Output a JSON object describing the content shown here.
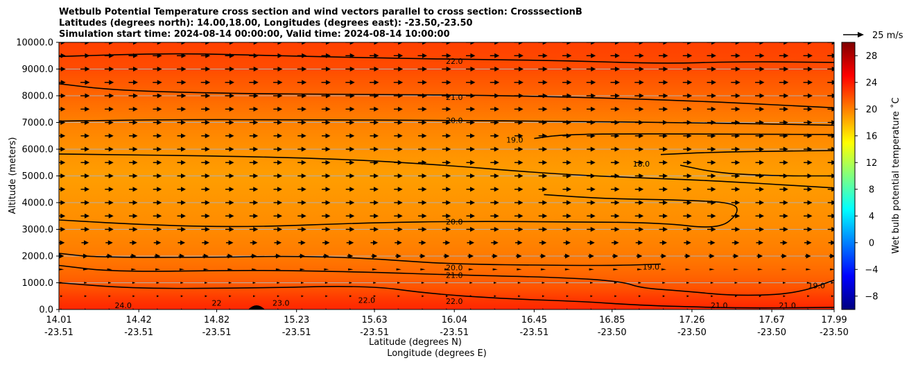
{
  "chart_data": {
    "type": "heatmap",
    "subtype": "contour-fill cross section with quiver vectors",
    "title_lines": [
      "Wetbulb Potential Temperature cross section and wind vectors parallel to cross section: CrosssectionB",
      "Latitudes (degrees north): 14.00,18.00, Longitudes (degrees east): -23.50,-23.50",
      "Simulation start time: 2024-08-14 00:00:00, Valid time: 2024-08-14 10:00:00"
    ],
    "xlabel_lat": "Latitude (degrees N)",
    "xlabel_lon": "Longitude (degrees E)",
    "ylabel": "Altitude (meters)",
    "x_ticks": [
      {
        "lat": "14.01",
        "lon": "-23.51"
      },
      {
        "lat": "14.42",
        "lon": "-23.51"
      },
      {
        "lat": "14.82",
        "lon": "-23.51"
      },
      {
        "lat": "15.23",
        "lon": "-23.51"
      },
      {
        "lat": "15.63",
        "lon": "-23.51"
      },
      {
        "lat": "16.04",
        "lon": "-23.51"
      },
      {
        "lat": "16.45",
        "lon": "-23.51"
      },
      {
        "lat": "16.85",
        "lon": "-23.50"
      },
      {
        "lat": "17.26",
        "lon": "-23.50"
      },
      {
        "lat": "17.67",
        "lon": "-23.50"
      },
      {
        "lat": "17.99",
        "lon": "-23.50"
      }
    ],
    "xlim": [
      14.01,
      17.99
    ],
    "y_ticks": [
      "0.0",
      "1000.0",
      "2000.0",
      "3000.0",
      "4000.0",
      "5000.0",
      "6000.0",
      "7000.0",
      "8000.0",
      "9000.0",
      "10000.0"
    ],
    "y_tick_values": [
      0,
      1000,
      2000,
      3000,
      4000,
      5000,
      6000,
      7000,
      8000,
      9000,
      10000
    ],
    "ylim": [
      0,
      10000
    ],
    "grid": "horizontal",
    "colorbar": {
      "label": "Wet bulb potential temperature $^\\circ$C",
      "label_text": "Wet bulb potential temperature ˚C",
      "ticks": [
        "−8",
        "−4",
        "0",
        "4",
        "8",
        "12",
        "16",
        "20",
        "24",
        "28"
      ],
      "tick_values": [
        -8,
        -4,
        0,
        4,
        8,
        12,
        16,
        20,
        24,
        28
      ],
      "range": [
        -10,
        30
      ],
      "colormap": "jet"
    },
    "quiver_key": {
      "label": "25 m/s",
      "speed": 25
    },
    "field_profile": [
      {
        "alt": 0,
        "value": 23.5
      },
      {
        "alt": 300,
        "value": 23.0
      },
      {
        "alt": 800,
        "value": 21.8
      },
      {
        "alt": 1300,
        "value": 21.0
      },
      {
        "alt": 2000,
        "value": 20.2
      },
      {
        "alt": 3000,
        "value": 19.6
      },
      {
        "alt": 4000,
        "value": 19.2
      },
      {
        "alt": 5000,
        "value": 18.8
      },
      {
        "alt": 6000,
        "value": 19.3
      },
      {
        "alt": 7000,
        "value": 20.0
      },
      {
        "alt": 8000,
        "value": 21.0
      },
      {
        "alt": 9000,
        "value": 22.0
      },
      {
        "alt": 10000,
        "value": 22.5
      }
    ],
    "contours": [
      {
        "level": "22.0",
        "points": [
          [
            14.01,
            9470
          ],
          [
            14.6,
            9600
          ],
          [
            15.2,
            9480
          ],
          [
            15.8,
            9400
          ],
          [
            16.1,
            9360
          ],
          [
            16.6,
            9320
          ],
          [
            17.1,
            9200
          ],
          [
            17.5,
            9280
          ],
          [
            17.99,
            9250
          ]
        ]
      },
      {
        "level": "21.0",
        "points": [
          [
            14.01,
            8450
          ],
          [
            14.3,
            8200
          ],
          [
            14.9,
            8080
          ],
          [
            15.6,
            8050
          ],
          [
            16.2,
            8020
          ],
          [
            16.8,
            7920
          ],
          [
            17.3,
            7800
          ],
          [
            17.99,
            7550
          ]
        ]
      },
      {
        "level": "20.0",
        "points": [
          [
            14.01,
            7050
          ],
          [
            14.6,
            7110
          ],
          [
            15.3,
            7100
          ],
          [
            16.0,
            7080
          ],
          [
            16.6,
            7040
          ],
          [
            17.2,
            7000
          ],
          [
            17.99,
            6900
          ]
        ]
      },
      {
        "level": "19.0",
        "points": [
          [
            16.45,
            6400
          ],
          [
            16.6,
            6550
          ],
          [
            17.0,
            6580
          ],
          [
            17.5,
            6560
          ],
          [
            17.99,
            6550
          ]
        ]
      },
      {
        "level": "19.0",
        "points": [
          [
            14.01,
            5820
          ],
          [
            14.9,
            5740
          ],
          [
            15.5,
            5620
          ],
          [
            16.0,
            5400
          ],
          [
            16.5,
            5100
          ],
          [
            16.9,
            4950
          ],
          [
            17.3,
            4850
          ],
          [
            17.99,
            4550
          ]
        ]
      },
      {
        "level": "18.0",
        "points": [
          [
            17.1,
            5800
          ],
          [
            17.4,
            5900
          ],
          [
            17.99,
            5950
          ]
        ]
      },
      {
        "level": "18.0",
        "points": [
          [
            17.2,
            5400
          ],
          [
            17.4,
            5100
          ],
          [
            17.7,
            5000
          ],
          [
            17.99,
            5000
          ]
        ]
      },
      {
        "level": "20.0",
        "points": [
          [
            14.01,
            3350
          ],
          [
            14.5,
            3150
          ],
          [
            15.0,
            3080
          ],
          [
            15.6,
            3250
          ],
          [
            16.1,
            3300
          ],
          [
            16.6,
            3280
          ],
          [
            17.1,
            3250
          ],
          [
            17.4,
            3000
          ],
          [
            17.5,
            3600
          ],
          [
            17.48,
            4000
          ],
          [
            17.2,
            4100
          ],
          [
            16.8,
            4150
          ],
          [
            16.5,
            4300
          ]
        ]
      },
      {
        "level": "20.0",
        "points": [
          [
            14.01,
            2100
          ],
          [
            14.2,
            1950
          ],
          [
            14.8,
            1950
          ],
          [
            15.2,
            2000
          ],
          [
            15.6,
            1920
          ],
          [
            16.0,
            1700
          ],
          [
            16.6,
            1650
          ],
          [
            16.9,
            1650
          ],
          [
            17.1,
            1700
          ]
        ]
      },
      {
        "level": "21.0",
        "points": [
          [
            14.01,
            1650
          ],
          [
            14.3,
            1400
          ],
          [
            15.0,
            1480
          ],
          [
            15.6,
            1400
          ],
          [
            16.0,
            1300
          ],
          [
            16.6,
            1200
          ],
          [
            16.9,
            1050
          ],
          [
            17.0,
            800
          ],
          [
            17.2,
            700
          ],
          [
            17.5,
            500
          ],
          [
            17.8,
            600
          ],
          [
            17.99,
            1100
          ]
        ]
      },
      {
        "level": "22.0",
        "points": [
          [
            14.01,
            1000
          ],
          [
            14.4,
            780
          ],
          [
            15.0,
            800
          ],
          [
            15.6,
            900
          ],
          [
            15.9,
            600
          ],
          [
            16.3,
            400
          ],
          [
            16.7,
            300
          ],
          [
            17.0,
            150
          ],
          [
            17.5,
            50
          ],
          [
            17.99,
            80
          ]
        ]
      }
    ],
    "contour_labels": [
      {
        "text": "22.0",
        "lat": 16.04,
        "alt": 9300
      },
      {
        "text": "21.0",
        "lat": 16.04,
        "alt": 7950
      },
      {
        "text": "20.0",
        "lat": 16.04,
        "alt": 7080
      },
      {
        "text": "19.0",
        "lat": 16.35,
        "alt": 6350
      },
      {
        "text": "18.0",
        "lat": 17.0,
        "alt": 5450
      },
      {
        "text": "20.0",
        "lat": 16.04,
        "alt": 3280
      },
      {
        "text": "20.0",
        "lat": 16.04,
        "alt": 1570
      },
      {
        "text": "21.0",
        "lat": 16.04,
        "alt": 1290
      },
      {
        "text": "22.0",
        "lat": 16.04,
        "alt": 310
      },
      {
        "text": "19.0",
        "lat": 17.05,
        "alt": 1600
      },
      {
        "text": "19.0",
        "lat": 17.9,
        "alt": 900
      },
      {
        "text": "21.0",
        "lat": 17.4,
        "alt": 150
      },
      {
        "text": "21.0",
        "lat": 17.75,
        "alt": 150
      },
      {
        "text": "22.0",
        "lat": 15.59,
        "alt": 350
      },
      {
        "text": "23.0",
        "lat": 15.15,
        "alt": 250
      },
      {
        "text": "22",
        "lat": 14.82,
        "alt": 250
      },
      {
        "text": "24.0",
        "lat": 14.34,
        "alt": 150
      }
    ],
    "quiver": {
      "columns": 33,
      "rows": 21,
      "wind_profile": [
        {
          "alt": 0,
          "u": 1
        },
        {
          "alt": 1000,
          "u": 3
        },
        {
          "alt": 2000,
          "u": 9
        },
        {
          "alt": 3000,
          "u": 13
        },
        {
          "alt": 5000,
          "u": 13
        },
        {
          "alt": 7000,
          "u": 13
        },
        {
          "alt": 8000,
          "u": 14
        },
        {
          "alt": 10000,
          "u": 14
        }
      ]
    }
  }
}
